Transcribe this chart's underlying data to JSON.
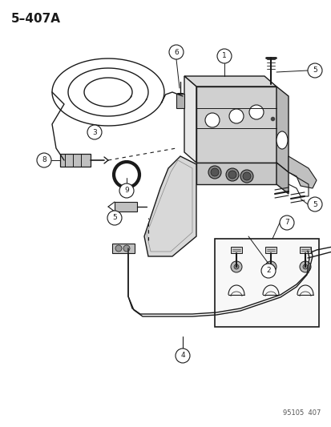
{
  "title": "5–407A",
  "watermark": "95105  407",
  "bg_color": "#ffffff",
  "line_color": "#1a1a1a",
  "fig_width": 4.14,
  "fig_height": 5.33,
  "dpi": 100
}
